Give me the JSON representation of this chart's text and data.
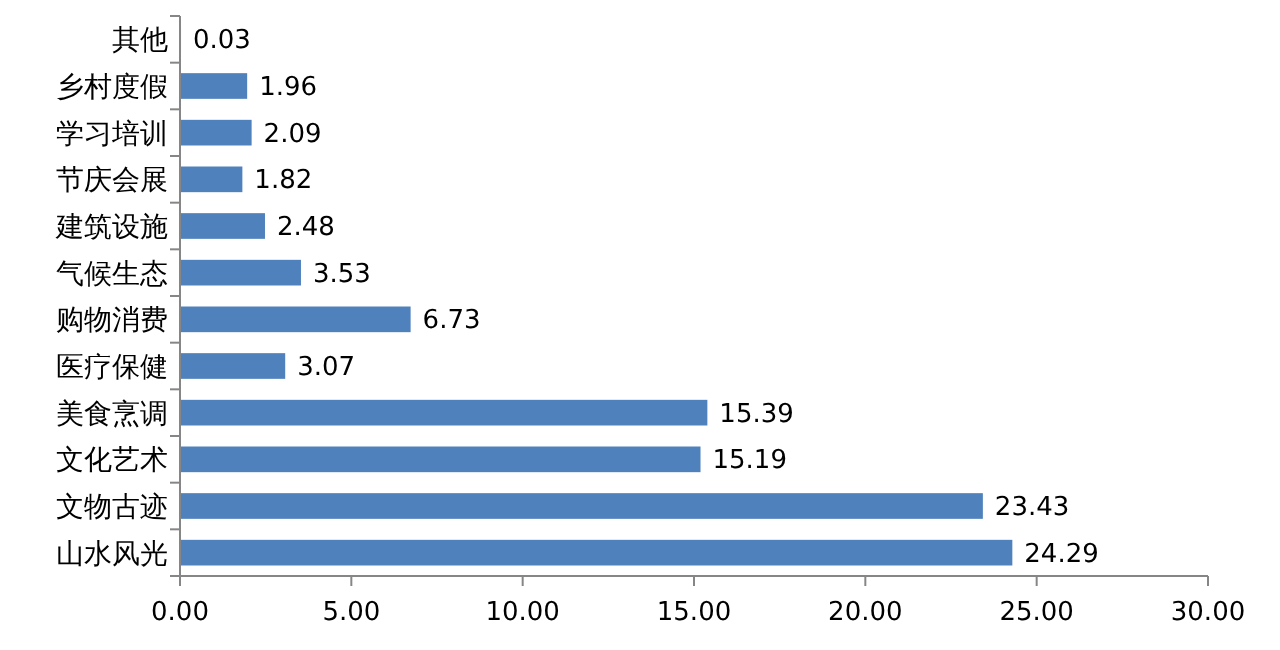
{
  "chart_data": {
    "type": "bar",
    "orientation": "horizontal",
    "categories": [
      "其他",
      "乡村度假",
      "学习培训",
      "节庆会展",
      "建筑设施",
      "气候生态",
      "购物消费",
      "医疗保健",
      "美食烹调",
      "文化艺术",
      "文物古迹",
      "山水风光"
    ],
    "values": [
      0.03,
      1.96,
      2.09,
      1.82,
      2.48,
      3.53,
      6.73,
      3.07,
      15.39,
      15.19,
      23.43,
      24.29
    ],
    "color": "#4f81bd",
    "data_labels": true,
    "xlim": [
      0,
      30
    ],
    "xticks": [
      {
        "value": 0,
        "label": "0.00"
      },
      {
        "value": 5,
        "label": "5.00"
      },
      {
        "value": 10,
        "label": "10.00"
      },
      {
        "value": 15,
        "label": "15.00"
      },
      {
        "value": 20,
        "label": "20.00"
      },
      {
        "value": 25,
        "label": "25.00"
      },
      {
        "value": 30,
        "label": "30.00"
      }
    ],
    "grid": false
  }
}
